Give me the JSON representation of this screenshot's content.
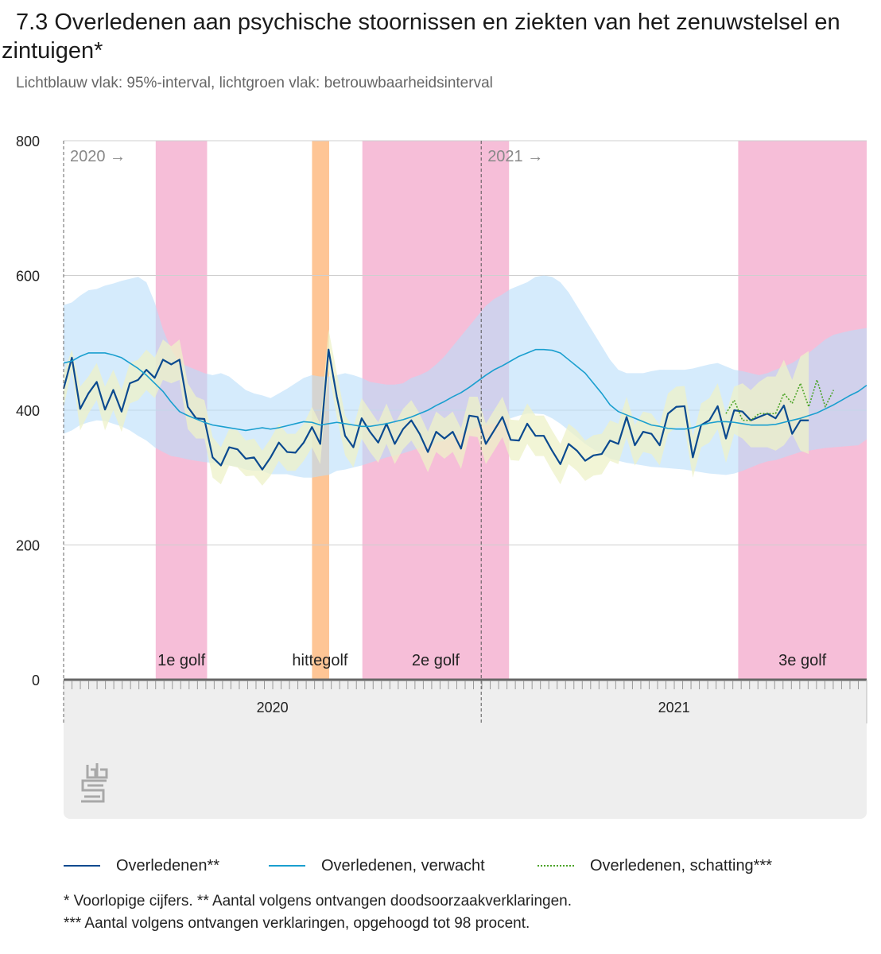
{
  "title": "7.3 Overledenen aan psychische stoornissen en ziekten van het zenuwstelsel en zintuigen*",
  "subtitle": "Lichtblauw vlak: 95%-interval, lichtgroen vlak: betrouwbaarheidsinterval",
  "chart_data": {
    "type": "line",
    "ylim": [
      0,
      800
    ],
    "yticks": [
      0,
      200,
      400,
      600,
      800
    ],
    "x_unit": "week number from start of 2020 (week 1 = 1)",
    "x_range": [
      1,
      76
    ],
    "year_markers": [
      {
        "label": "2020 →",
        "x": 1
      },
      {
        "label": "2021 →",
        "x": 40
      }
    ],
    "axis_labels": [
      {
        "label": "2020",
        "x_from": 1,
        "x_to": 40
      },
      {
        "label": "2021",
        "x_from": 40,
        "x_to": 76
      }
    ],
    "periods": [
      {
        "label": "1e golf",
        "x_from": 9.6,
        "x_to": 14.4,
        "color": "#f6bed8"
      },
      {
        "label": "hittegolf",
        "x_from": 24.2,
        "x_to": 25.8,
        "color": "#fec595"
      },
      {
        "label": "2e golf",
        "x_from": 28.9,
        "x_to": 42.6,
        "color": "#f6bed8"
      },
      {
        "label": "3e golf",
        "x_from": 64.0,
        "x_to": 76.0,
        "color": "#f6bed8"
      }
    ],
    "series": [
      {
        "name": "Overledenen**",
        "color": "#0b4a8f",
        "x_start": 1,
        "values": [
          432,
          478,
          402,
          425,
          442,
          401,
          430,
          398,
          440,
          445,
          460,
          448,
          475,
          468,
          475,
          405,
          388,
          387,
          330,
          318,
          345,
          342,
          328,
          330,
          312,
          330,
          352,
          338,
          337,
          352,
          375,
          350,
          490,
          420,
          362,
          345,
          388,
          368,
          352,
          380,
          350,
          372,
          385,
          365,
          338,
          368,
          358,
          368,
          343,
          392,
          390,
          350,
          370,
          390,
          356,
          355,
          380,
          362,
          362,
          340,
          320,
          350,
          340,
          325,
          333,
          335,
          355,
          350,
          390,
          348,
          368,
          365,
          348,
          395,
          405,
          406,
          330,
          378,
          385,
          406,
          358,
          400,
          398,
          385,
          390,
          395,
          388,
          407,
          365,
          385,
          385
        ]
      },
      {
        "name": "Overledenen, verwacht",
        "color": "#1a9fcf",
        "x_start": 1,
        "values": [
          470,
          473,
          480,
          485,
          485,
          485,
          482,
          478,
          470,
          462,
          452,
          440,
          428,
          412,
          398,
          392,
          387,
          382,
          378,
          376,
          374,
          372,
          370,
          372,
          374,
          372,
          374,
          377,
          380,
          383,
          382,
          378,
          380,
          382,
          380,
          378,
          376,
          376,
          378,
          380,
          383,
          386,
          390,
          395,
          400,
          407,
          413,
          420,
          426,
          434,
          443,
          452,
          460,
          466,
          473,
          480,
          485,
          490,
          490,
          489,
          485,
          475,
          465,
          455,
          440,
          425,
          408,
          398,
          393,
          388,
          383,
          378,
          376,
          373,
          372,
          372,
          374,
          378,
          381,
          383,
          383,
          382,
          380,
          378,
          378,
          378,
          379,
          382,
          385,
          388,
          392,
          396,
          402,
          408,
          415,
          422,
          428,
          437
        ]
      },
      {
        "name": "Overledenen, schatting***",
        "color": "#4aa326",
        "x_start": 81,
        "values": [
          395,
          415,
          385,
          385,
          395,
          395,
          395,
          425,
          410,
          440,
          405,
          445,
          405,
          430
        ]
      }
    ],
    "bands": [
      {
        "name": "95%-interval",
        "color": "#b9ddfa",
        "x_start": 1,
        "upper": [
          556,
          560,
          570,
          578,
          580,
          585,
          588,
          592,
          595,
          598,
          590,
          560,
          520,
          490,
          470,
          465,
          460,
          455,
          452,
          455,
          450,
          440,
          430,
          425,
          422,
          418,
          425,
          432,
          440,
          448,
          452,
          450,
          450,
          452,
          455,
          452,
          448,
          442,
          440,
          438,
          438,
          440,
          448,
          452,
          458,
          468,
          480,
          495,
          510,
          525,
          540,
          555,
          565,
          572,
          580,
          585,
          590,
          598,
          600,
          598,
          590,
          575,
          555,
          535,
          515,
          495,
          475,
          460,
          455,
          455,
          455,
          458,
          460,
          460,
          460,
          460,
          462,
          465,
          468,
          470,
          465,
          460,
          458,
          455,
          452,
          455,
          460,
          465,
          470,
          478,
          485,
          495,
          505,
          512,
          515,
          518,
          520,
          522
        ],
        "lower": [
          365,
          370,
          378,
          382,
          385,
          384,
          380,
          376,
          370,
          362,
          355,
          345,
          338,
          332,
          330,
          327,
          325,
          323,
          322,
          320,
          318,
          316,
          312,
          310,
          310,
          305,
          305,
          305,
          302,
          300,
          300,
          302,
          304,
          310,
          312,
          315,
          318,
          322,
          326,
          330,
          333,
          336,
          340,
          344,
          348,
          352,
          355,
          360,
          365,
          370,
          375,
          378,
          380,
          385,
          388,
          392,
          395,
          395,
          394,
          388,
          380,
          370,
          360,
          350,
          342,
          335,
          328,
          325,
          322,
          320,
          318,
          316,
          315,
          314,
          313,
          312,
          310,
          308,
          306,
          305,
          304,
          306,
          310,
          315,
          320,
          324,
          326,
          330,
          334,
          338,
          340,
          342,
          344,
          345,
          346,
          347,
          348,
          357
        ]
      },
      {
        "name": "betrouwbaarheidsinterval",
        "color": "#eef2c8",
        "x_start": 1,
        "upper": [
          455,
          490,
          435,
          450,
          470,
          435,
          460,
          430,
          470,
          475,
          490,
          478,
          505,
          495,
          505,
          440,
          420,
          415,
          360,
          345,
          372,
          370,
          355,
          358,
          340,
          358,
          380,
          365,
          365,
          380,
          405,
          380,
          520,
          455,
          392,
          375,
          418,
          400,
          382,
          410,
          380,
          402,
          415,
          395,
          368,
          398,
          388,
          398,
          373,
          420,
          420,
          380,
          400,
          420,
          386,
          385,
          410,
          392,
          392,
          370,
          350,
          380,
          370,
          355,
          363,
          365,
          385,
          380,
          420,
          378,
          398,
          395,
          378,
          425,
          435,
          436,
          360,
          410,
          418,
          440,
          395,
          435,
          440,
          430,
          442,
          450,
          450,
          475,
          445,
          480,
          488
        ],
        "lower": [
          405,
          460,
          370,
          395,
          415,
          370,
          400,
          368,
          410,
          415,
          430,
          418,
          445,
          440,
          445,
          372,
          358,
          358,
          300,
          290,
          318,
          315,
          302,
          303,
          288,
          303,
          325,
          310,
          310,
          325,
          345,
          320,
          460,
          390,
          333,
          315,
          358,
          338,
          322,
          350,
          320,
          342,
          355,
          335,
          308,
          338,
          328,
          338,
          313,
          362,
          360,
          320,
          340,
          360,
          326,
          325,
          350,
          332,
          332,
          310,
          290,
          320,
          310,
          295,
          303,
          305,
          325,
          320,
          360,
          318,
          338,
          335,
          318,
          365,
          375,
          375,
          300,
          345,
          352,
          372,
          322,
          365,
          358,
          345,
          345,
          345,
          340,
          348,
          365,
          340,
          335
        ]
      }
    ]
  },
  "legend": {
    "items": [
      {
        "label": "Overledenen**",
        "color": "#0b4a8f"
      },
      {
        "label": "Overledenen, verwacht",
        "color": "#1a9fcf"
      },
      {
        "label": "Overledenen, schatting***",
        "color": "#4aa326"
      }
    ]
  },
  "footnotes": {
    "line1": "* Voorlopige cijfers. ** Aantal volgens ontvangen doodsoorzaakverklaringen.",
    "line2": "*** Aantal volgens ontvangen verklaringen, opgehoogd tot 98 procent."
  }
}
